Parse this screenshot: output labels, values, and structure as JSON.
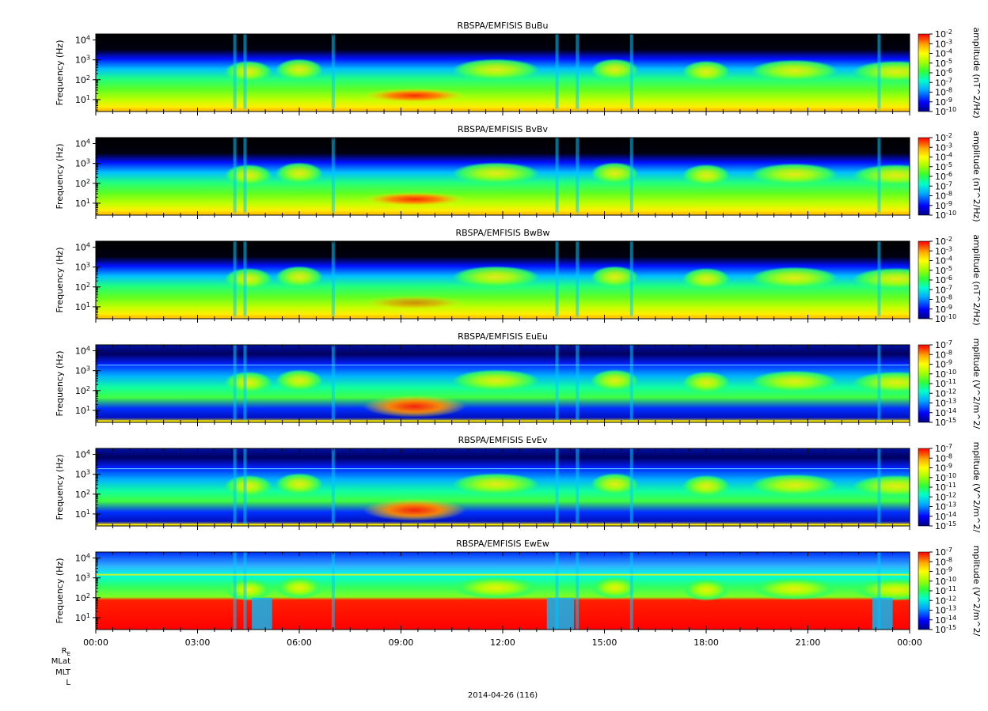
{
  "chart_data": {
    "type": "heatmap",
    "x_tick_labels": [
      "00:00",
      "03:00",
      "06:00",
      "09:00",
      "12:00",
      "15:00",
      "18:00",
      "21:00",
      "00:00"
    ],
    "x_range_hours": [
      0,
      24
    ],
    "y_tick_labels": [
      "10<sup>1</sup>",
      "10<sup>2</sup>",
      "10<sup>3</sup>",
      "10<sup>4</sup>"
    ],
    "y_ticks_exp": [
      1,
      2,
      3,
      4
    ],
    "y_range_log10": [
      0.4,
      4.3
    ],
    "y_scale": "log",
    "panels": [
      {
        "title": "RBSPA/EMFISIS  BuBu",
        "ylabel": "Frequency (Hz)",
        "zlabel": "amplitude (nT^2/Hz)",
        "z_exp": [
          -2,
          -3,
          -4,
          -5,
          -6,
          -7,
          -8,
          -9,
          -10
        ],
        "kind": "B"
      },
      {
        "title": "RBSPA/EMFISIS  BvBv",
        "ylabel": "Frequency (Hz)",
        "zlabel": "amplitude (nT^2/Hz)",
        "z_exp": [
          -2,
          -3,
          -4,
          -5,
          -6,
          -7,
          -8,
          -9,
          -10
        ],
        "kind": "B"
      },
      {
        "title": "RBSPA/EMFISIS  BwBw",
        "ylabel": "Frequency (Hz)",
        "zlabel": "amplitude (nT^2/Hz)",
        "z_exp": [
          -2,
          -3,
          -4,
          -5,
          -6,
          -7,
          -8,
          -9,
          -10
        ],
        "kind": "B"
      },
      {
        "title": "RBSPA/EMFISIS  EuEu",
        "ylabel": "Frequency (Hz)",
        "zlabel": "mplitude (V^2/m^2/",
        "z_exp": [
          -7,
          -8,
          -9,
          -10,
          -11,
          -12,
          -13,
          -14,
          -15
        ],
        "kind": "E"
      },
      {
        "title": "RBSPA/EMFISIS  EvEv",
        "ylabel": "Frequency (Hz)",
        "zlabel": "mplitude (V^2/m^2/",
        "z_exp": [
          -7,
          -8,
          -9,
          -10,
          -11,
          -12,
          -13,
          -14,
          -15
        ],
        "kind": "E"
      },
      {
        "title": "RBSPA/EMFISIS  EwEw",
        "ylabel": "Frequency (Hz)",
        "zlabel": "mplitude (V^2/m^2/",
        "z_exp": [
          -7,
          -8,
          -9,
          -10,
          -11,
          -12,
          -13,
          -14,
          -15
        ],
        "kind": "Ew"
      }
    ],
    "colormap": [
      "#000080",
      "#0000ff",
      "#00aaff",
      "#00ffcc",
      "#33ff33",
      "#aaff00",
      "#ffff00",
      "#ffaa00",
      "#ff4400",
      "#ff0000"
    ],
    "ephemeris_labels": [
      "R<sub>E</sub>",
      "MLat",
      "MLT",
      "L"
    ],
    "date_label": "2014-04-26 (116)"
  }
}
